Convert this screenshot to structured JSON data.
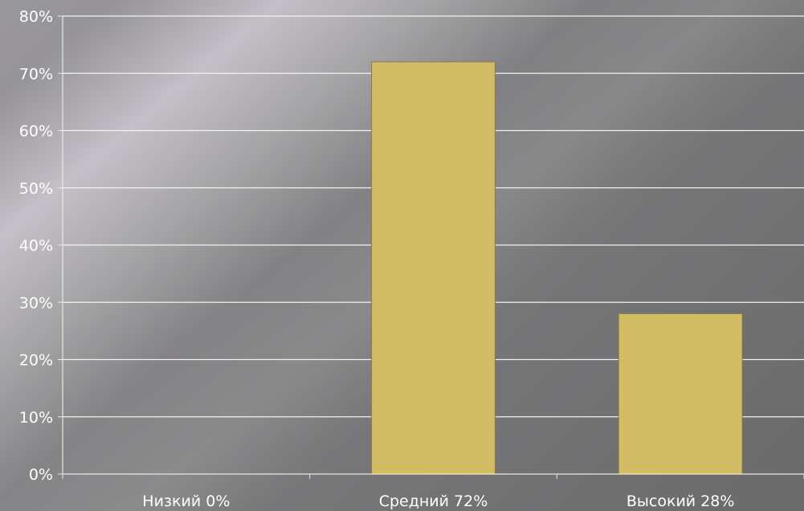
{
  "chart_data": {
    "type": "bar",
    "categories": [
      "Низкий 0%",
      "Средний 72%",
      "Высокий 28%"
    ],
    "values": [
      0,
      72,
      28
    ],
    "ylim": [
      0,
      80
    ],
    "yticks": [
      "0%",
      "10%",
      "20%",
      "30%",
      "40%",
      "50%",
      "60%",
      "70%",
      "80%"
    ],
    "grid": true,
    "bar_color": "#d2bc66"
  }
}
